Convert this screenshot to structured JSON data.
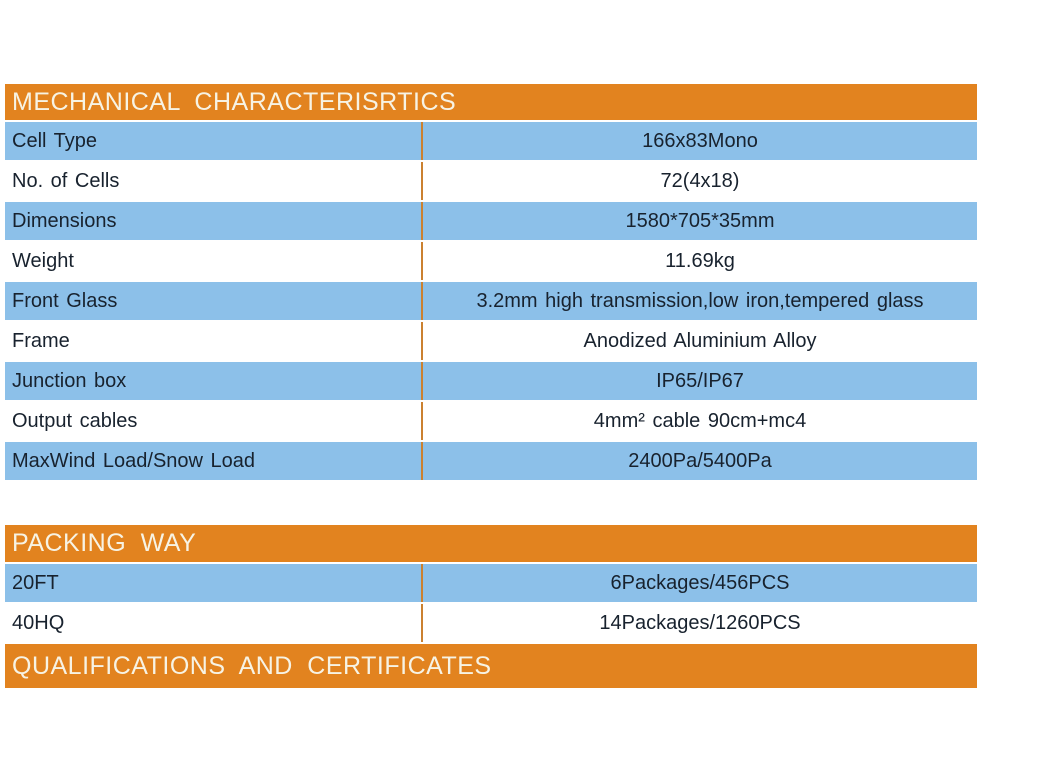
{
  "colors": {
    "header_bg": "#E2831F",
    "header_text": "#F7F3E4",
    "row_blue": "#8CC0E9",
    "row_white": "#FFFFFF",
    "row_text": "#18222E",
    "divider": "#CB8130"
  },
  "mechanical": {
    "title": "MECHANICAL CHARACTERISRTICS",
    "rows": [
      {
        "label": "Cell Type",
        "value": "166x83Mono"
      },
      {
        "label": "No. of Cells",
        "value": "72(4x18)"
      },
      {
        "label": "Dimensions",
        "value": "1580*705*35mm"
      },
      {
        "label": "Weight",
        "value": "11.69kg"
      },
      {
        "label": "Front Glass",
        "value": "3.2mm high transmission,low iron,tempered glass"
      },
      {
        "label": "Frame",
        "value": "Anodized Aluminium Alloy"
      },
      {
        "label": "Junction box",
        "value": "IP65/IP67"
      },
      {
        "label": "Output cables",
        "value": "4mm² cable 90cm+mc4"
      },
      {
        "label": "MaxWind Load/Snow Load",
        "value": "2400Pa/5400Pa"
      }
    ]
  },
  "packing": {
    "title": "PACKING WAY",
    "rows": [
      {
        "label": "20FT",
        "value": "6Packages/456PCS"
      },
      {
        "label": "40HQ",
        "value": "14Packages/1260PCS"
      }
    ]
  },
  "qualifications": {
    "title": "QUALIFICATIONS AND CERTIFICATES"
  }
}
